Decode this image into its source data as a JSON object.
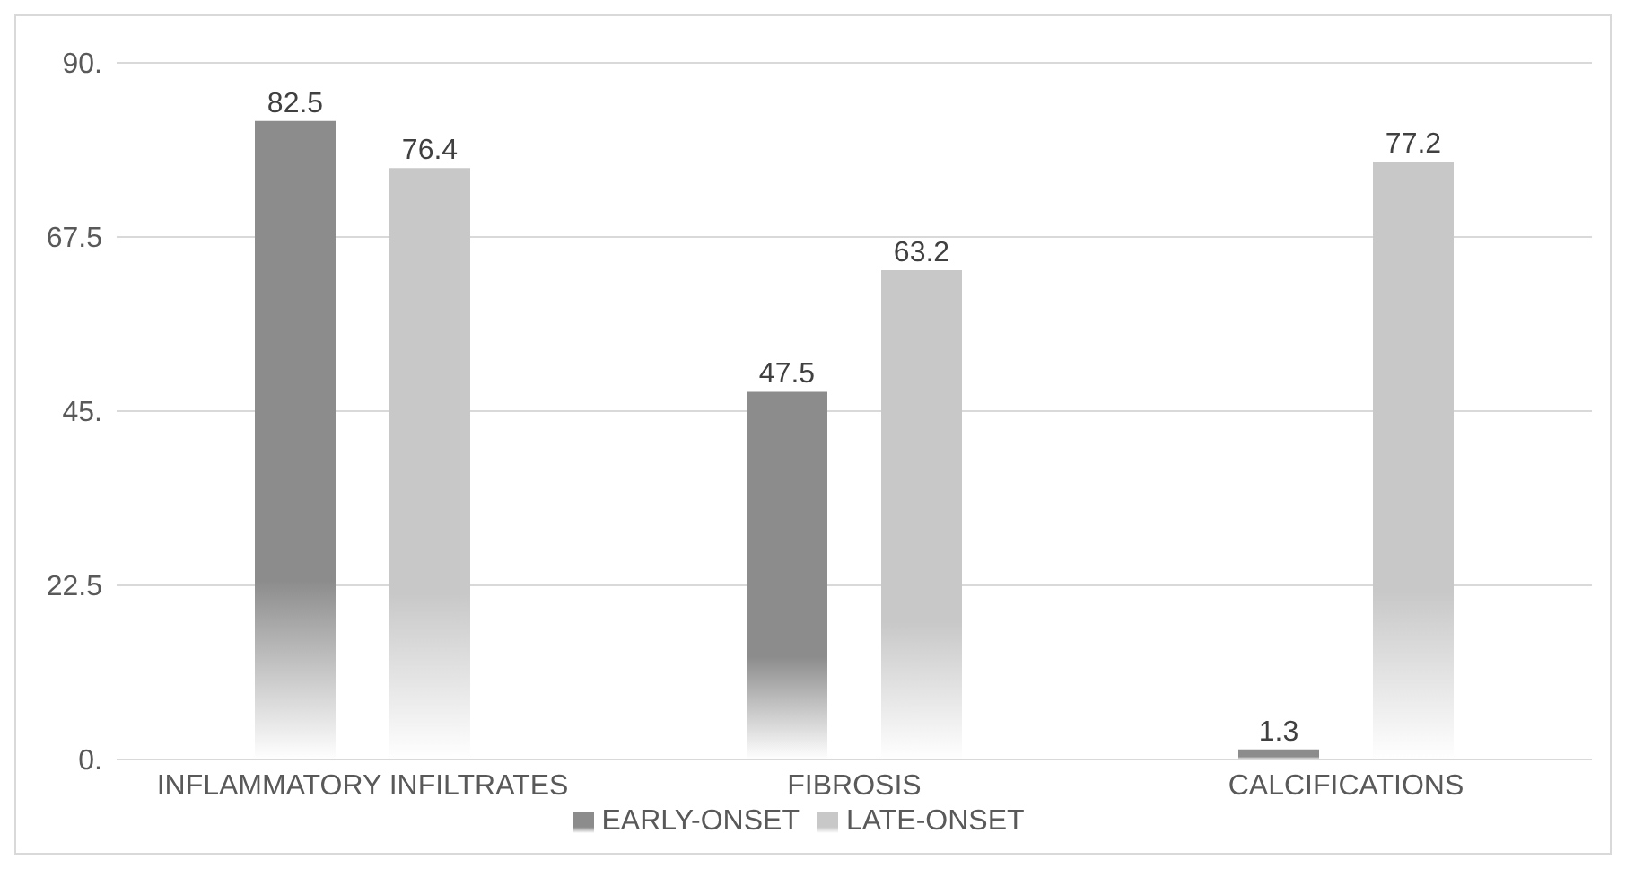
{
  "chart_data": {
    "type": "bar",
    "categories": [
      "INFLAMMATORY INFILTRATES",
      "FIBROSIS",
      "CALCIFICATIONS"
    ],
    "series": [
      {
        "name": "EARLY-ONSET",
        "color": "#8c8c8c",
        "values": [
          82.5,
          47.5,
          1.3
        ]
      },
      {
        "name": "LATE-ONSET",
        "color": "#c8c8c8",
        "values": [
          76.4,
          63.2,
          77.2
        ]
      }
    ],
    "ylim": [
      0,
      90
    ],
    "yticks": [
      {
        "value": 0,
        "label": "0."
      },
      {
        "value": 22.5,
        "label": "22.5"
      },
      {
        "value": 45,
        "label": "45."
      },
      {
        "value": 67.5,
        "label": "67.5"
      },
      {
        "value": 90,
        "label": "90."
      }
    ],
    "grid": "y",
    "legend": "bottom",
    "data_labels": true
  }
}
